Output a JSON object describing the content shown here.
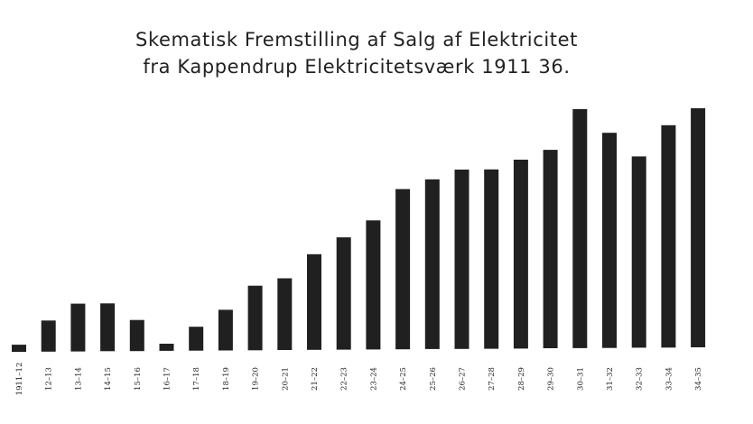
{
  "chart_data": {
    "type": "bar",
    "title": "Skematisk Fremstilling af Salg af Elektricitet",
    "subtitle": "fra Kappendrup Elektricitetsværk 1911 36.",
    "categories": [
      "1911–12",
      "12–13",
      "13–14",
      "14–15",
      "15–16",
      "16–17",
      "17–18",
      "18–19",
      "19–20",
      "20–21",
      "21–22",
      "22–23",
      "23–24",
      "24–25",
      "25–26",
      "26–27",
      "27–28",
      "28–29",
      "29–30",
      "30–31",
      "31–32",
      "32–33",
      "33–34",
      "34–35"
    ],
    "values": [
      3,
      13,
      20,
      20,
      13,
      3,
      10,
      17,
      27,
      30,
      40,
      47,
      54,
      67,
      71,
      75,
      75,
      79,
      83,
      100,
      90,
      80,
      93,
      100
    ],
    "ylim": [
      0,
      100
    ],
    "xlabel": "",
    "ylabel": "",
    "grid": false,
    "bar_color": "#202020"
  }
}
